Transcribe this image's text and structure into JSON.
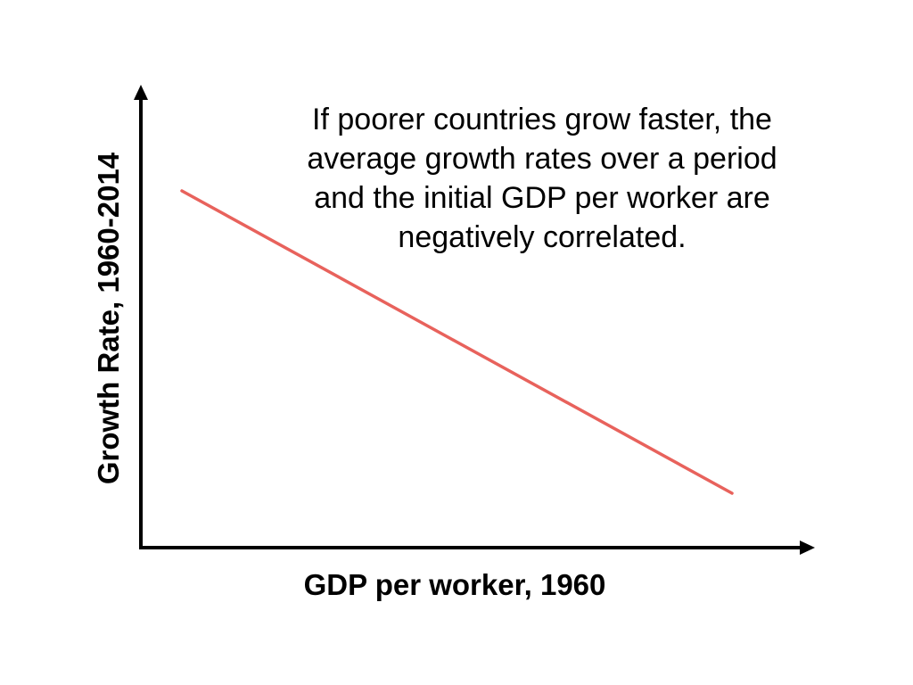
{
  "chart_data": {
    "type": "line",
    "xlabel": "GDP per worker, 1960",
    "ylabel": "Growth Rate, 1960-2014",
    "x_tick_labels": [],
    "y_tick_labels": [],
    "grid": false,
    "series": [
      {
        "x": [
          0,
          1
        ],
        "y": [
          1,
          0
        ],
        "color": "#e8625c"
      }
    ],
    "annotation": {
      "lines": [
        "If poorer countries grow faster, the",
        "average growth rates over a period",
        "and the initial GDP per worker are",
        "negatively correlated."
      ]
    },
    "colors": {
      "axis": "#000000",
      "line": "#e8625c"
    }
  }
}
